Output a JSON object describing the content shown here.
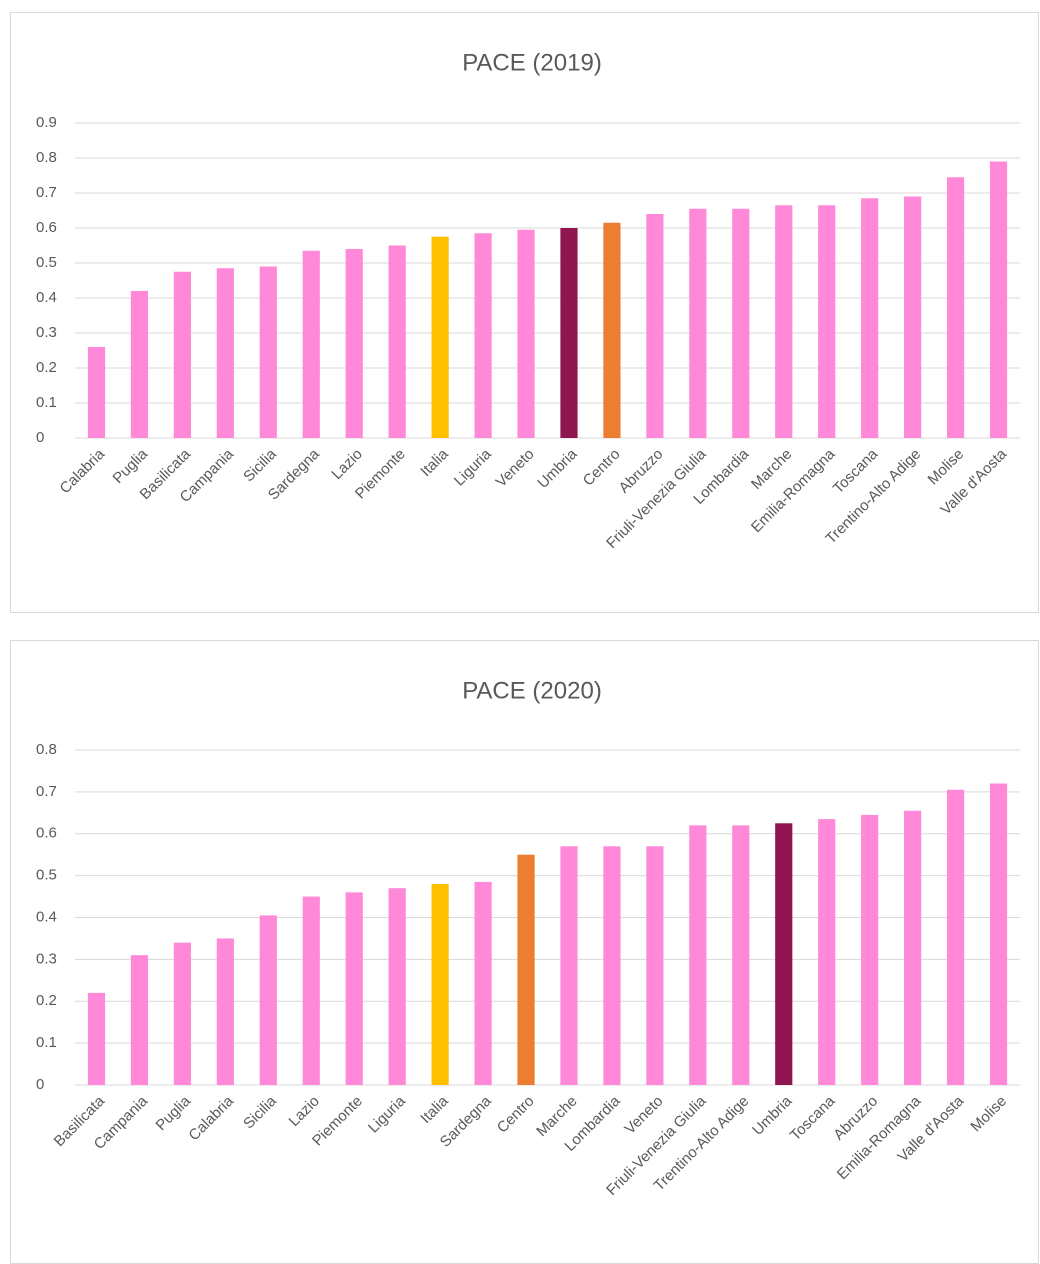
{
  "chart_data": [
    {
      "type": "bar",
      "title": "PACE (2019)",
      "categories": [
        "Calabria",
        "Puglia",
        "Basilicata",
        "Campania",
        "Sicilia",
        "Sardegna",
        "Lazio",
        "Piemonte",
        "Italia",
        "Liguria",
        "Veneto",
        "Umbria",
        "Centro",
        "Abruzzo",
        "Friuli-Venezia Giulia",
        "Lombardia",
        "Marche",
        "Emilia-Romagna",
        "Toscana",
        "Trentino-Alto Adige",
        "Molise",
        "Valle d'Aosta"
      ],
      "values": [
        0.26,
        0.42,
        0.475,
        0.485,
        0.49,
        0.535,
        0.54,
        0.55,
        0.575,
        0.585,
        0.595,
        0.6,
        0.615,
        0.64,
        0.655,
        0.655,
        0.665,
        0.665,
        0.685,
        0.69,
        0.745,
        0.79
      ],
      "colors": [
        "#ff88d8",
        "#ff88d8",
        "#ff88d8",
        "#ff88d8",
        "#ff88d8",
        "#ff88d8",
        "#ff88d8",
        "#ff88d8",
        "#ffc000",
        "#ff88d8",
        "#ff88d8",
        "#8e1550",
        "#ed7d31",
        "#ff88d8",
        "#ff88d8",
        "#ff88d8",
        "#ff88d8",
        "#ff88d8",
        "#ff88d8",
        "#ff88d8",
        "#ff88d8",
        "#ff88d8"
      ],
      "ylim": [
        0,
        0.9
      ],
      "yticks": [
        0,
        0.1,
        0.2,
        0.3,
        0.4,
        0.5,
        0.6,
        0.7,
        0.8,
        0.9
      ],
      "grid": true
    },
    {
      "type": "bar",
      "title": "PACE (2020)",
      "categories": [
        "Basilicata",
        "Campania",
        "Puglia",
        "Calabria",
        "Sicilia",
        "Lazio",
        "Piemonte",
        "Liguria",
        "Italia",
        "Sardegna",
        "Centro",
        "Marche",
        "Lombardia",
        "Veneto",
        "Friuli-Venezia Giulia",
        "Trentino-Alto Adige",
        "Umbria",
        "Toscana",
        "Abruzzo",
        "Emilia-Romagna",
        "Valle d'Aosta",
        "Molise"
      ],
      "values": [
        0.22,
        0.31,
        0.34,
        0.35,
        0.405,
        0.45,
        0.46,
        0.47,
        0.48,
        0.485,
        0.55,
        0.57,
        0.57,
        0.57,
        0.62,
        0.62,
        0.625,
        0.635,
        0.645,
        0.655,
        0.705,
        0.72
      ],
      "colors": [
        "#ff88d8",
        "#ff88d8",
        "#ff88d8",
        "#ff88d8",
        "#ff88d8",
        "#ff88d8",
        "#ff88d8",
        "#ff88d8",
        "#ffc000",
        "#ff88d8",
        "#ed7d31",
        "#ff88d8",
        "#ff88d8",
        "#ff88d8",
        "#ff88d8",
        "#ff88d8",
        "#8e1550",
        "#ff88d8",
        "#ff88d8",
        "#ff88d8",
        "#ff88d8",
        "#ff88d8"
      ],
      "ylim": [
        0,
        0.8
      ],
      "yticks": [
        0,
        0.1,
        0.2,
        0.3,
        0.4,
        0.5,
        0.6,
        0.7,
        0.8
      ],
      "grid": true
    }
  ]
}
